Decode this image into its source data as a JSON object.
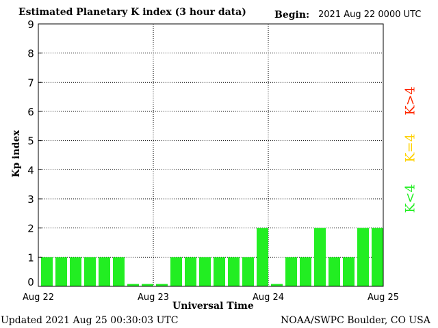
{
  "header": {
    "title": "Estimated Planetary K index (3 hour data)",
    "begin_label": "Begin:",
    "begin_value": "2021 Aug 22 0000 UTC"
  },
  "footer": {
    "updated": "Updated 2021 Aug 25 00:30:03 UTC",
    "source": "NOAA/SWPC Boulder, CO USA"
  },
  "legend": {
    "high": "K>4",
    "equal": "K=4",
    "low": "K<4",
    "colors": {
      "high": "#ff2a00",
      "equal": "#ffd200",
      "low": "#22ee22"
    }
  },
  "chart_data": {
    "type": "bar",
    "xlabel": "Universal Time",
    "ylabel": "Kp index",
    "ylim": [
      0,
      9
    ],
    "yticks": [
      0,
      1,
      2,
      3,
      4,
      5,
      6,
      7,
      8,
      9
    ],
    "xticks": [
      "Aug 22",
      "Aug 23",
      "Aug 24",
      "Aug 25"
    ],
    "interval_hours": 3,
    "values": [
      1,
      1,
      1,
      1,
      1,
      1,
      0,
      0,
      0,
      1,
      1,
      1,
      1,
      1,
      1,
      2,
      0,
      1,
      1,
      2,
      1,
      1,
      2,
      2
    ],
    "grid": "dotted",
    "bar_color": "#22ee22"
  }
}
